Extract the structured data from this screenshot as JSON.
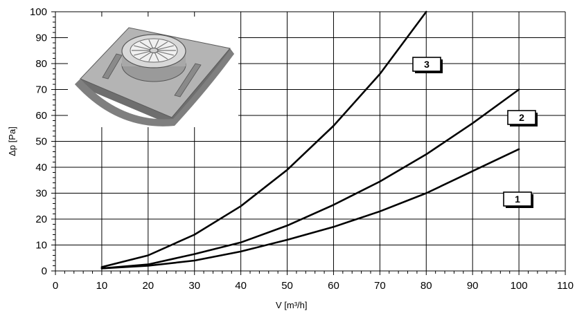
{
  "chart_data": {
    "type": "line",
    "xlabel": "V",
    "xlabel_unit": "[m³/h]",
    "ylabel": "Δp [Pa]",
    "xlim": [
      0,
      110
    ],
    "ylim": [
      0,
      100
    ],
    "x_ticks": [
      "0",
      "10",
      "20",
      "30",
      "40",
      "50",
      "60",
      "70",
      "80",
      "90",
      "100",
      "110"
    ],
    "y_ticks": [
      "0",
      "10",
      "20",
      "30",
      "40",
      "50",
      "60",
      "70",
      "80",
      "90",
      "100"
    ],
    "grid": true,
    "series": [
      {
        "name": "1",
        "x": [
          10,
          20,
          30,
          40,
          50,
          60,
          70,
          80,
          90,
          100
        ],
        "y": [
          1,
          2,
          4,
          7.5,
          12,
          17,
          23,
          30,
          38.5,
          47
        ]
      },
      {
        "name": "2",
        "x": [
          10,
          20,
          30,
          40,
          50,
          60,
          70,
          80,
          90,
          100
        ],
        "y": [
          1,
          2.5,
          6.5,
          11,
          17.5,
          25.5,
          34.5,
          45,
          57,
          70
        ]
      },
      {
        "name": "3",
        "x": [
          10,
          20,
          30,
          40,
          50,
          60,
          70,
          80
        ],
        "y": [
          1.5,
          6,
          14,
          25,
          39,
          56,
          76,
          100
        ]
      }
    ]
  }
}
